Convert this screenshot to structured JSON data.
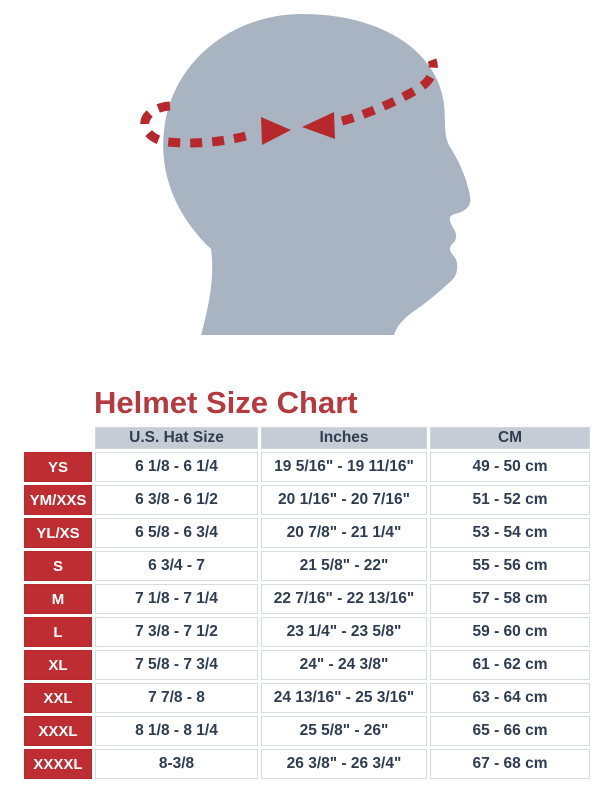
{
  "title": "Helmet Size Chart",
  "illustration": {
    "description": "Side profile head silhouette with dashed measuring tape around the crown and two arrows meeting at the forehead",
    "head_color": "#A9B4C2",
    "tape_color": "#B7282D"
  },
  "colors": {
    "title_red": "#B43A3F",
    "size_cell_red": "#BE2D32",
    "header_bg": "#C6CCD5",
    "table_text": "#2E3D52",
    "cell_border": "#D8DBDF"
  },
  "chart_data": {
    "type": "table",
    "title": "Helmet Size Chart",
    "columns": [
      "",
      "U.S. Hat Size",
      "Inches",
      "CM"
    ],
    "rows": [
      {
        "size": "YS",
        "us_hat_size": "6 1/8 - 6 1/4",
        "inches": "19 5/16\" - 19 11/16\"",
        "cm": "49 - 50 cm"
      },
      {
        "size": "YM/XXS",
        "us_hat_size": "6 3/8 - 6 1/2",
        "inches": "20 1/16\" - 20 7/16\"",
        "cm": "51 - 52 cm"
      },
      {
        "size": "YL/XS",
        "us_hat_size": "6 5/8 - 6 3/4",
        "inches": "20 7/8\" - 21 1/4\"",
        "cm": "53 - 54 cm"
      },
      {
        "size": "S",
        "us_hat_size": "6 3/4 - 7",
        "inches": "21 5/8\" - 22\"",
        "cm": "55 - 56 cm"
      },
      {
        "size": "M",
        "us_hat_size": "7 1/8 - 7 1/4",
        "inches": "22 7/16\" - 22 13/16\"",
        "cm": "57 - 58 cm"
      },
      {
        "size": "L",
        "us_hat_size": "7 3/8 - 7 1/2",
        "inches": "23 1/4\" - 23 5/8\"",
        "cm": "59 - 60 cm"
      },
      {
        "size": "XL",
        "us_hat_size": "7 5/8 - 7 3/4",
        "inches": "24\" - 24 3/8\"",
        "cm": "61 - 62 cm"
      },
      {
        "size": "XXL",
        "us_hat_size": "7 7/8 - 8",
        "inches": "24 13/16\" - 25 3/16\"",
        "cm": "63 - 64 cm"
      },
      {
        "size": "XXXL",
        "us_hat_size": "8 1/8 - 8 1/4",
        "inches": "25 5/8\" - 26\"",
        "cm": "65 - 66 cm"
      },
      {
        "size": "XXXXL",
        "us_hat_size": "8-3/8",
        "inches": "26 3/8\" - 26 3/4\"",
        "cm": "67 - 68 cm"
      }
    ]
  }
}
